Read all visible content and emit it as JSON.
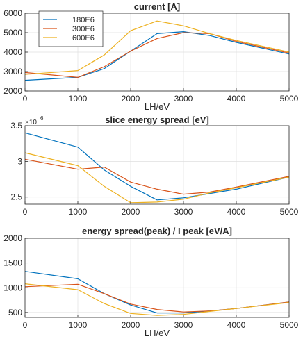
{
  "colors": {
    "series": [
      "#0072BD",
      "#D95319",
      "#EDB120"
    ],
    "grid": "#dfdfdf",
    "axis": "#262626"
  },
  "chart_data": [
    {
      "type": "line",
      "title": "current [A]",
      "xlabel": "LH/eV",
      "ylabel": "",
      "xlim": [
        0,
        5000
      ],
      "ylim": [
        2000,
        6000
      ],
      "xticks": [
        0,
        1000,
        2000,
        3000,
        4000,
        5000
      ],
      "yticks": [
        2000,
        3000,
        4000,
        5000,
        6000
      ],
      "x": [
        0,
        1000,
        1500,
        2000,
        2500,
        3000,
        3500,
        4000,
        5000
      ],
      "grid": true,
      "legend": "top-left",
      "series": [
        {
          "name": "180E6",
          "values": [
            2550,
            2700,
            3150,
            4050,
            4950,
            5050,
            4850,
            4500,
            3900
          ]
        },
        {
          "name": "300E6",
          "values": [
            2950,
            2700,
            3250,
            4050,
            4700,
            5000,
            4950,
            4550,
            3950
          ]
        },
        {
          "name": "600E6",
          "values": [
            2850,
            3050,
            3850,
            5100,
            5600,
            5350,
            4950,
            4600,
            4000
          ]
        }
      ]
    },
    {
      "type": "line",
      "title": "slice energy spread [eV]",
      "xlabel": "",
      "ylabel": "",
      "exponent_label": "×10",
      "exponent_power": "6",
      "xlim": [
        0,
        5000
      ],
      "ylim": [
        2400000,
        3500000
      ],
      "xticks": [
        0,
        1000,
        2000,
        3000,
        4000,
        5000
      ],
      "yticks": [
        2500000,
        3000000,
        3500000
      ],
      "ytick_labels": [
        "2.5",
        "3",
        "3.5"
      ],
      "x": [
        0,
        1000,
        1500,
        2000,
        2500,
        3000,
        3500,
        4000,
        5000
      ],
      "grid": true,
      "series": [
        {
          "name": "180E6",
          "values": [
            3400000,
            3200000,
            2880000,
            2650000,
            2460000,
            2490000,
            2550000,
            2610000,
            2780000
          ]
        },
        {
          "name": "300E6",
          "values": [
            3030000,
            2890000,
            2920000,
            2710000,
            2610000,
            2540000,
            2570000,
            2640000,
            2790000
          ]
        },
        {
          "name": "600E6",
          "values": [
            3120000,
            2940000,
            2650000,
            2420000,
            2430000,
            2470000,
            2560000,
            2630000,
            2780000
          ]
        }
      ]
    },
    {
      "type": "line",
      "title": "energy spread(peak) / I peak [eV/A]",
      "xlabel": "LH/eV",
      "ylabel": "",
      "xlim": [
        0,
        5000
      ],
      "ylim": [
        400,
        2000
      ],
      "xticks": [
        0,
        1000,
        2000,
        3000,
        4000,
        5000
      ],
      "yticks": [
        500,
        1000,
        1500,
        2000
      ],
      "x": [
        0,
        1000,
        1500,
        2000,
        2500,
        3000,
        3500,
        4000,
        5000
      ],
      "grid": true,
      "series": [
        {
          "name": "180E6",
          "values": [
            1330,
            1180,
            880,
            650,
            490,
            490,
            530,
            580,
            710
          ]
        },
        {
          "name": "300E6",
          "values": [
            1020,
            1070,
            880,
            670,
            560,
            510,
            530,
            580,
            710
          ]
        },
        {
          "name": "600E6",
          "values": [
            1080,
            960,
            680,
            480,
            440,
            460,
            520,
            580,
            700
          ]
        }
      ]
    }
  ]
}
